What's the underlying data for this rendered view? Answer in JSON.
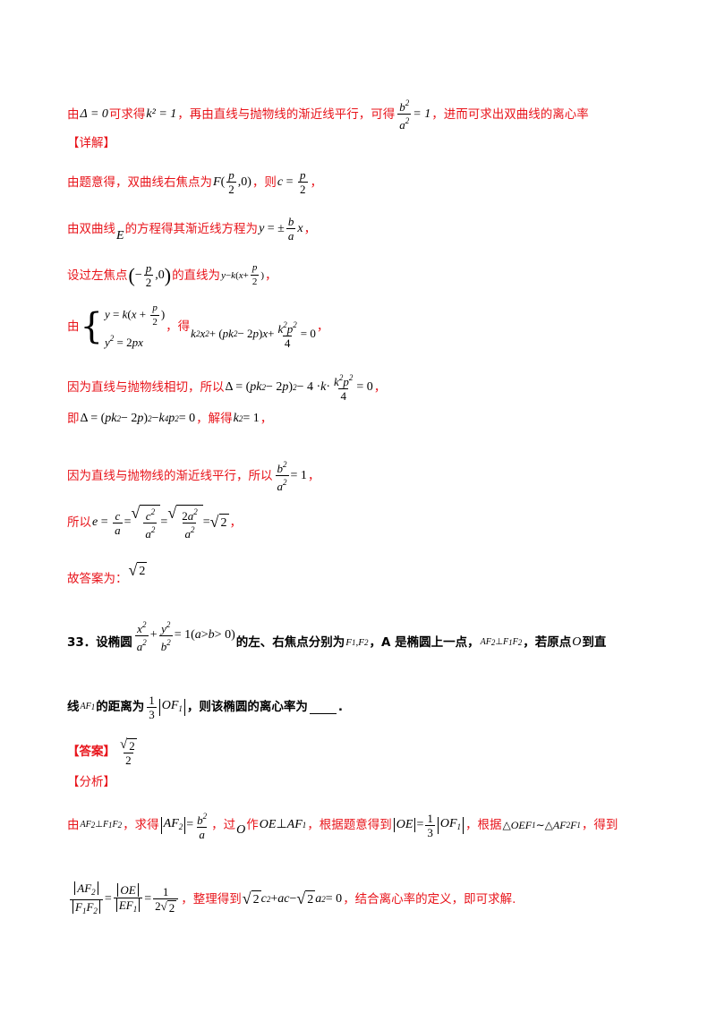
{
  "p1": {
    "a": "由",
    "m1": "Δ = 0",
    "b": "可求得",
    "m2": "k² = 1",
    "c": "，再由直线与抛物线的渐近线平行，可得",
    "m3": "= 1",
    "d": "，进而可求出双曲线的离心率"
  },
  "heading_detail": "【详解】",
  "p2": {
    "a": "由题意得，双曲线右焦点为",
    "b": "，则",
    "c": "，"
  },
  "p3": {
    "a": "由双曲线",
    "E": "E",
    "b": "的方程得其渐近线方程为",
    "c": "，"
  },
  "p4": {
    "a": "设过左焦点",
    "b": "的直线为",
    "c": "，"
  },
  "p5": {
    "a": "由",
    "b": "，得",
    "c": "，"
  },
  "p6": {
    "a": "因为直线与抛物线相切，所以",
    "c": "，"
  },
  "p7": {
    "a": "即",
    "b": "，解得",
    "c": "，"
  },
  "p8": {
    "a": "因为直线与抛物线的渐近线平行，所以",
    "c": "，"
  },
  "p9": {
    "a": "所以",
    "c": "，"
  },
  "p10": {
    "a": "故答案为："
  },
  "q33": {
    "num": "33．设椭圆",
    "t1": "的左、右焦点分别为",
    "t2": "，A 是椭圆上一点，",
    "t3": "，若原点",
    "t4": "到直",
    "l2a": "线",
    "l2b": "的距离为",
    "l2c": "，则该椭圆的离心率为",
    "l2d": "."
  },
  "answer_label": "【答案】",
  "analysis_label": "【分析】",
  "p11": {
    "a": "由",
    "b": "，求得",
    "c": "，过",
    "d": "作",
    "e": "，根据题意得到",
    "f": "，根据",
    "g": "，得到"
  },
  "p12": {
    "a": "，整理得到",
    "b": "，结合离心率的定义，即可求解."
  }
}
